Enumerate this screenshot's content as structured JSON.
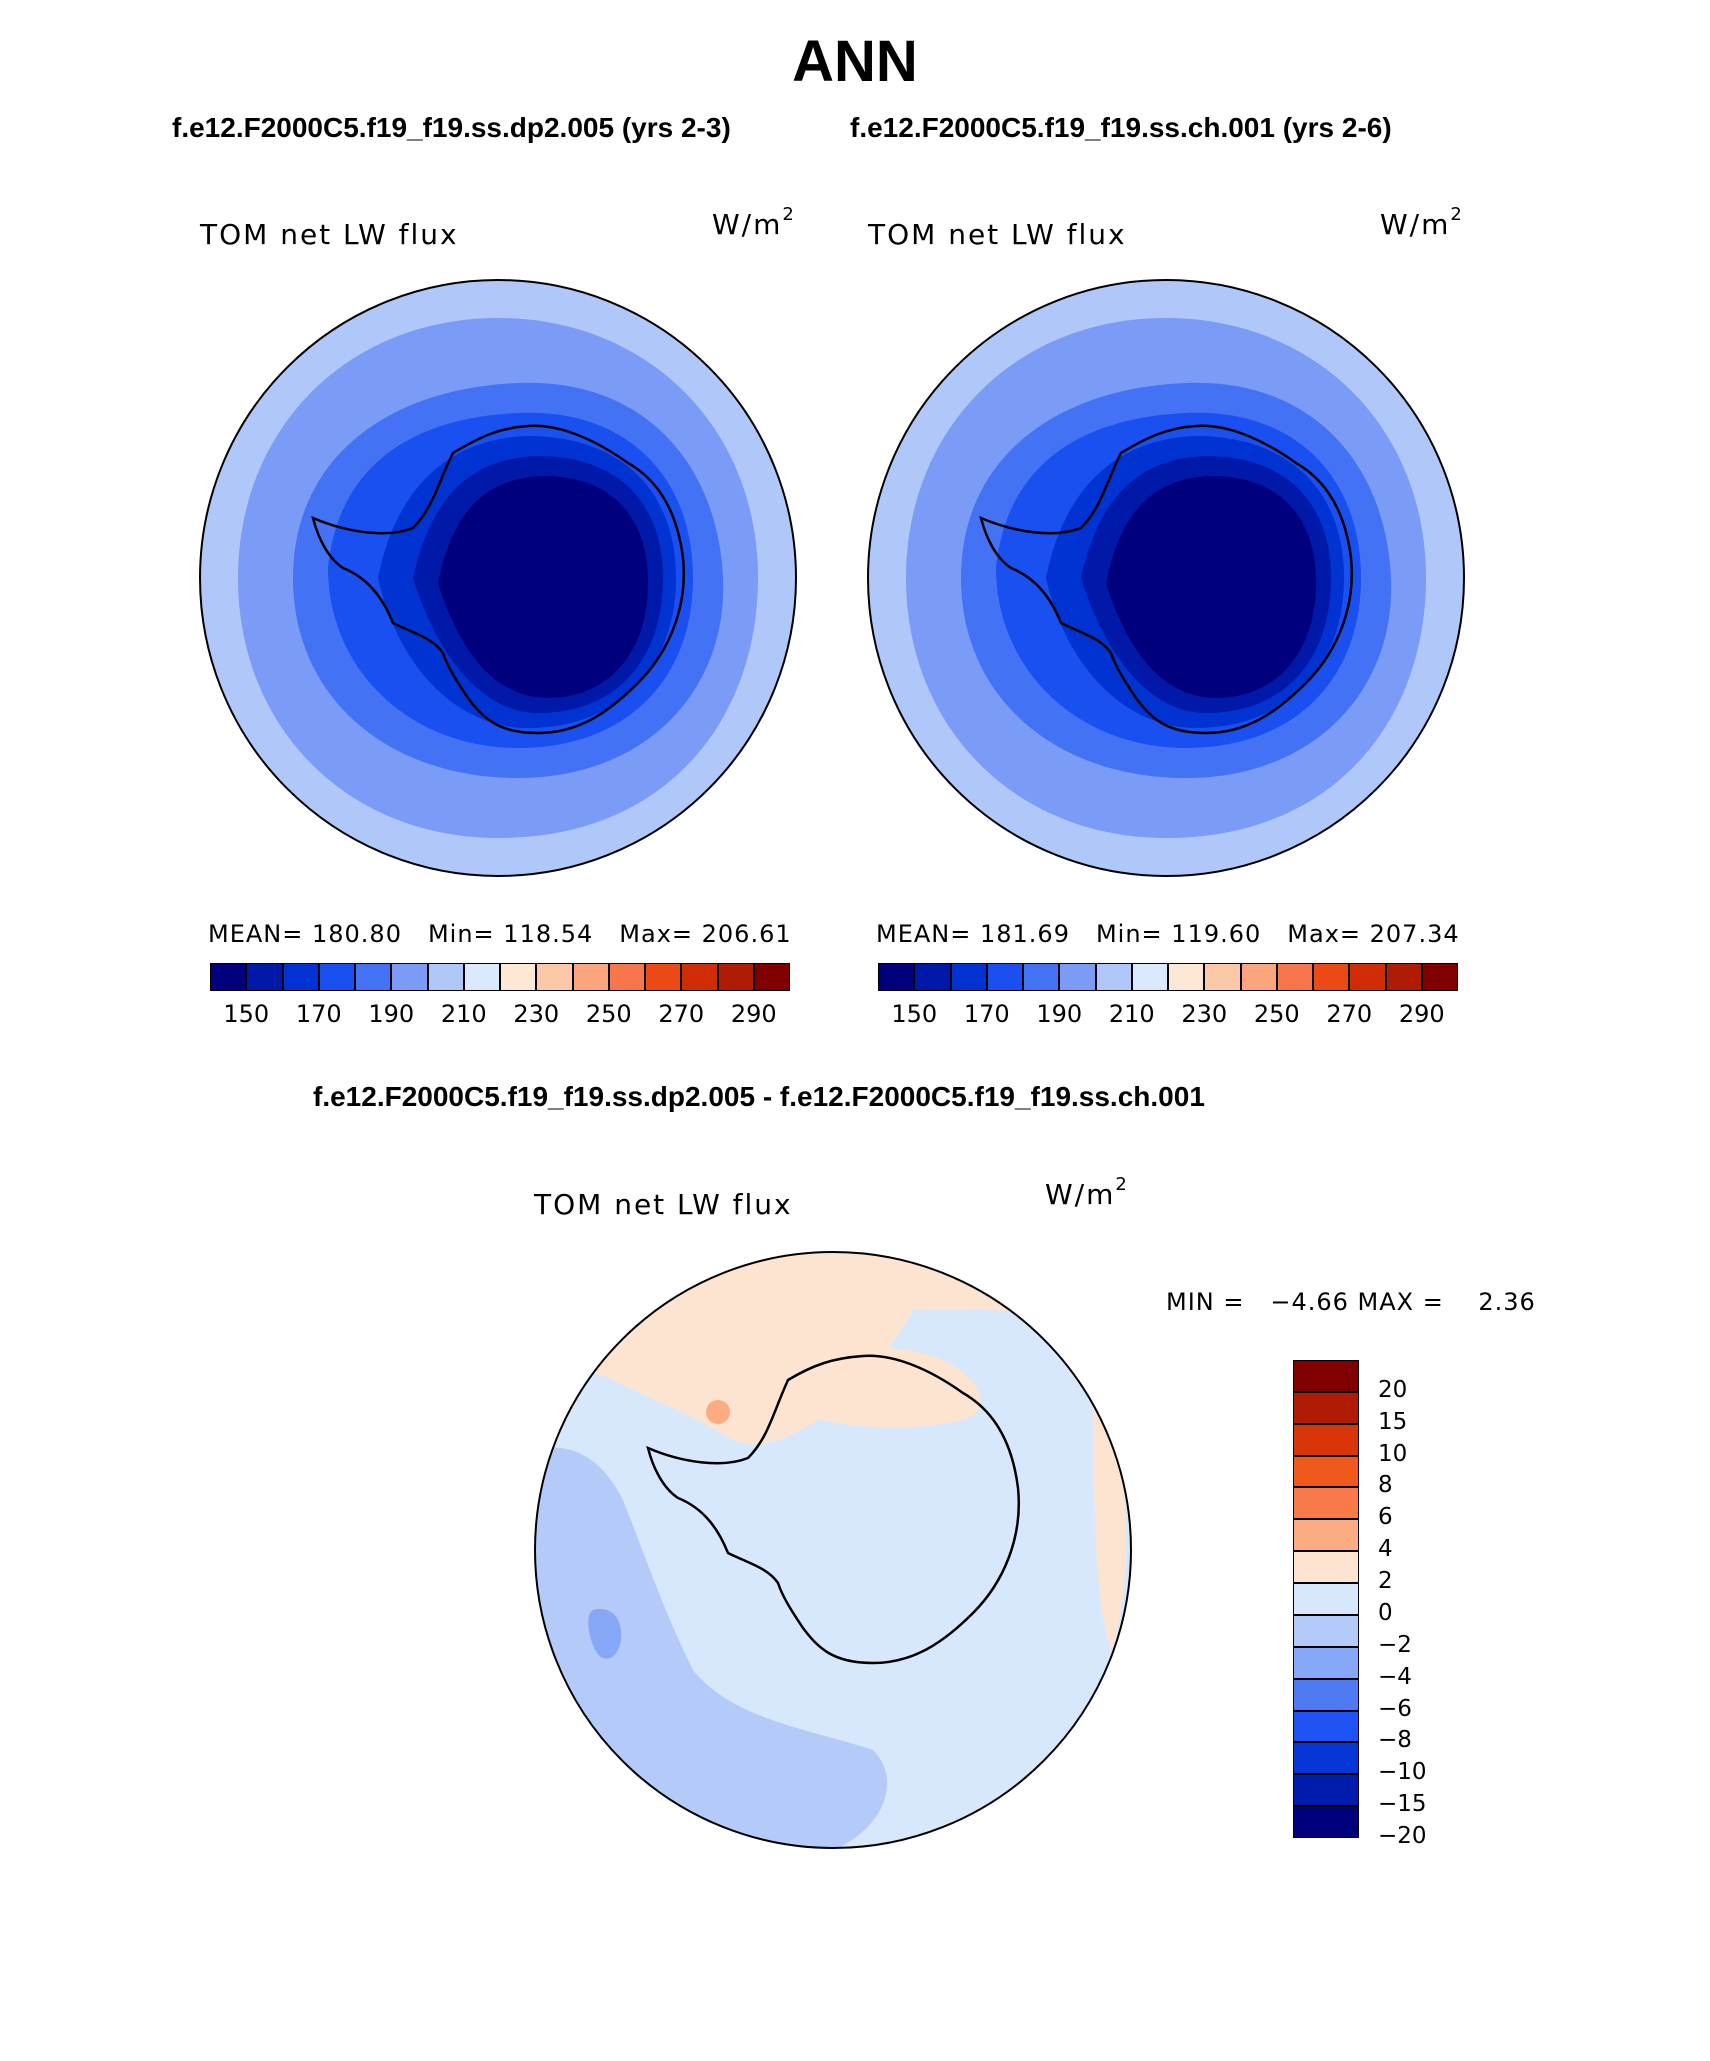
{
  "title": "ANN",
  "subtitles": {
    "left": "f.e12.F2000C5.f19_f19.ss.dp2.005 (yrs 2-3)",
    "right": "f.e12.F2000C5.f19_f19.ss.ch.001 (yrs 2-6)",
    "diff": "f.e12.F2000C5.f19_f19.ss.dp2.005 - f.e12.F2000C5.f19_f19.ss.ch.001"
  },
  "panels": [
    {
      "variable": "TOM net LW flux",
      "units": "W/m",
      "units_exp": "2",
      "mean_label": "MEAN= 180.80",
      "min_label": "Min= 118.54",
      "max_label": "Max= 206.61"
    },
    {
      "variable": "TOM net LW flux",
      "units": "W/m",
      "units_exp": "2",
      "mean_label": "MEAN= 181.69",
      "min_label": "Min= 119.60",
      "max_label": "Max= 207.34"
    },
    {
      "variable": "TOM net LW flux",
      "units": "W/m",
      "units_exp": "2",
      "minmax_label": "MIN =   −4.66 MAX =    2.36"
    }
  ],
  "colorbar_abs": {
    "colors": [
      "#00007f",
      "#0019a8",
      "#0033d1",
      "#1a4ff0",
      "#4472f5",
      "#7a9cf7",
      "#b0c7fa",
      "#dbe9fd",
      "#fde8d6",
      "#fcc8a8",
      "#fba57f",
      "#f8764b",
      "#eb4a17",
      "#d02d07",
      "#b01c03",
      "#800000"
    ],
    "tick_labels": [
      "150",
      "170",
      "190",
      "210",
      "230",
      "250",
      "270",
      "290"
    ]
  },
  "colorbar_diff": {
    "colors": [
      "#800000",
      "#b01c03",
      "#d8350b",
      "#ef5a1c",
      "#f87a48",
      "#fbac80",
      "#fde4d0",
      "#d7e8fd",
      "#b4cbfa",
      "#86a8f7",
      "#4e7af4",
      "#1f52f2",
      "#0636d6",
      "#001cad",
      "#00007f"
    ],
    "tick_labels": [
      "20",
      "15",
      "10",
      "8",
      "6",
      "4",
      "2",
      "0",
      "−2",
      "−4",
      "−6",
      "−8",
      "−10",
      "−15",
      "−20"
    ]
  }
}
